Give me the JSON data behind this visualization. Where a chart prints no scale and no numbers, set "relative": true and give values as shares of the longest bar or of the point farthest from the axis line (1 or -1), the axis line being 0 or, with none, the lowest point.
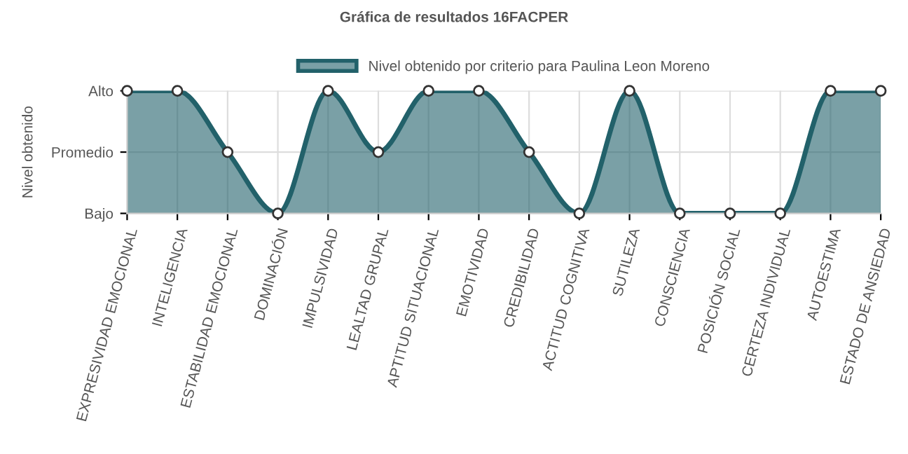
{
  "chart_data": {
    "type": "area",
    "title": "Gráfica de resultados 16FACPER",
    "ylabel": "Nivel obtenido",
    "categories": [
      "EXPRESIVIDAD EMOCIONAL",
      "INTELIGENCIA",
      "ESTABILIDAD EMOCIONAL",
      "DOMINACIÓN",
      "IMPULSIVIDAD",
      "LEALTAD GRUPAL",
      "APTITUD SITUACIONAL",
      "EMOTIVIDAD",
      "CREDIBILIDAD",
      "ACTITUD COGNITIVA",
      "SUTILEZA",
      "CONSCIENCIA",
      "POSICIÓN SOCIAL",
      "CERTEZA INDIVIDUAL",
      "AUTOESTIMA",
      "ESTADO DE ANSIEDAD"
    ],
    "series": [
      {
        "name": "Nivel obtenido por criterio para Paulina Leon Moreno",
        "color": "#22616a",
        "values": [
          1,
          1,
          0.5,
          0,
          1,
          0.5,
          1,
          1,
          0.5,
          0,
          1,
          0,
          0,
          0,
          1,
          1
        ]
      }
    ],
    "relative": true,
    "annotations": [
      "Alto",
      "Promedio",
      "Bajo"
    ],
    "grid": true,
    "legend": "top",
    "marker": "circle"
  }
}
